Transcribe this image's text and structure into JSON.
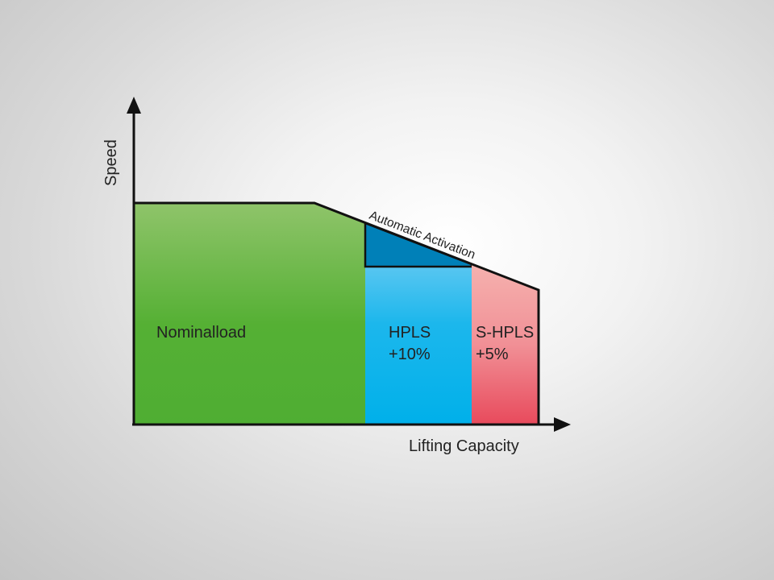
{
  "axes": {
    "y_label": "Speed",
    "x_label": "Lifting Capacity"
  },
  "regions": {
    "nominal": {
      "label": "Nominalload",
      "color_top": "#8fc46a",
      "color_bottom": "#4fae33"
    },
    "hpls": {
      "label_line1": "HPLS",
      "label_line2": "+10%",
      "color_top": "#85d1f5",
      "color_bottom": "#00b0ea"
    },
    "shpls": {
      "label_line1": "S-HPLS",
      "label_line2": "+5%",
      "color_top": "#f5b1ae",
      "color_bottom": "#e84a5c"
    },
    "activation": {
      "label": "Automatic Activation",
      "color": "#0080b8"
    }
  }
}
